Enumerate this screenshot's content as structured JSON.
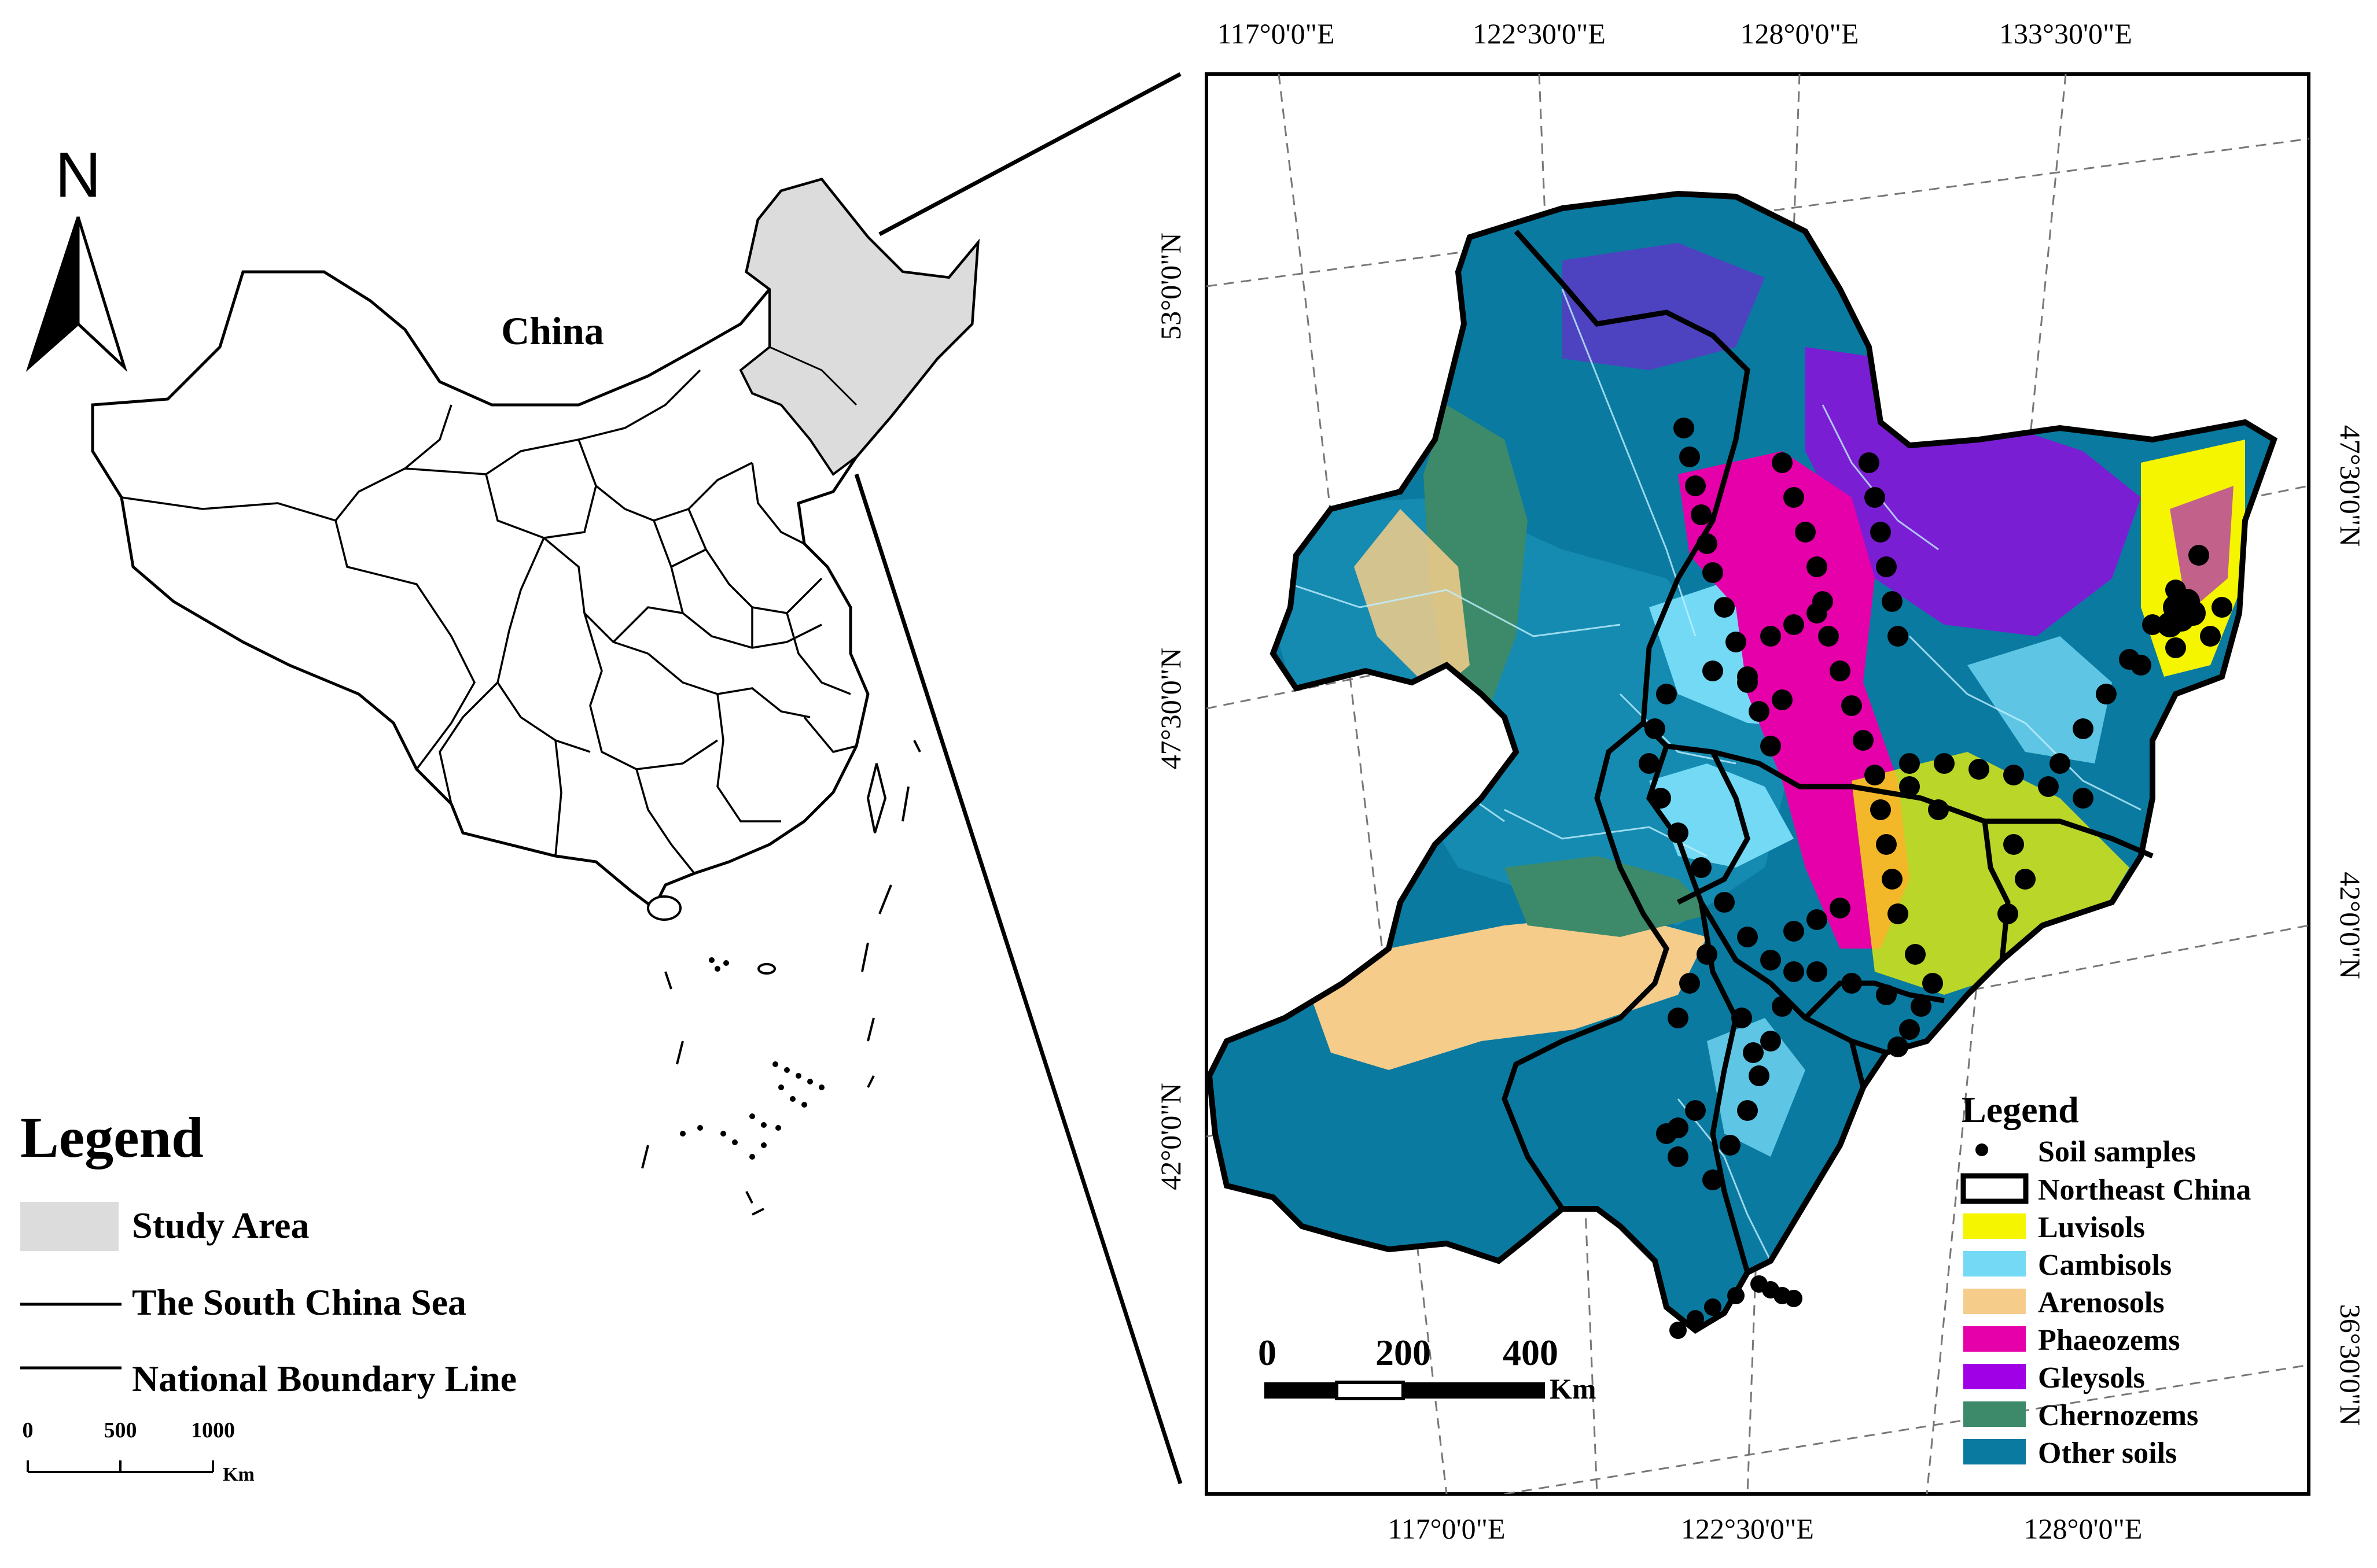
{
  "overview_map": {
    "north_label": "N",
    "country_label": "China",
    "legend_title": "Legend",
    "legend_items": [
      {
        "label": "Study Area",
        "swatch": "#dcdcdc"
      },
      {
        "label": "The South China Sea",
        "swatch": "line"
      },
      {
        "label": "National Boundary Line",
        "swatch": "line"
      }
    ],
    "scale_bar": {
      "ticks": [
        "0",
        "500",
        "1000"
      ],
      "unit": "Km"
    }
  },
  "detail_map": {
    "top_lon_labels": [
      "117°0'0\"E",
      "122°30'0\"E",
      "128°0'0\"E",
      "133°30'0\"E"
    ],
    "bottom_lon_labels": [
      "117°0'0\"E",
      "122°30'0\"E",
      "128°0'0\"E"
    ],
    "left_lat_labels": [
      "53°0'0\"N",
      "47°30'0\"N",
      "42°0'0\"N"
    ],
    "right_lat_labels": [
      "47°30'0\"N",
      "42°0'0\"N",
      "36°30'0\"N"
    ],
    "legend_title": "Legend",
    "legend_items": [
      {
        "label": "Soil samples",
        "swatch": "dot",
        "color": "#000000"
      },
      {
        "label": "Northeast China",
        "swatch": "outline",
        "color": "#000000"
      },
      {
        "label": "Luvisols",
        "swatch": "fill",
        "color": "#f5f500"
      },
      {
        "label": "Cambisols",
        "swatch": "fill",
        "color": "#73d9f5"
      },
      {
        "label": "Arenosols",
        "swatch": "fill",
        "color": "#f5cc8a"
      },
      {
        "label": "Phaeozems",
        "swatch": "fill",
        "color": "#e600a9"
      },
      {
        "label": "Gleysols",
        "swatch": "fill",
        "color": "#a000e6"
      },
      {
        "label": "Chernozems",
        "swatch": "fill",
        "color": "#3d8a6a"
      },
      {
        "label": "Other soils",
        "swatch": "fill",
        "color": "#0a7aa0"
      }
    ],
    "scale_bar": {
      "ticks": [
        "0",
        "200",
        "400"
      ],
      "unit": "Km"
    }
  }
}
